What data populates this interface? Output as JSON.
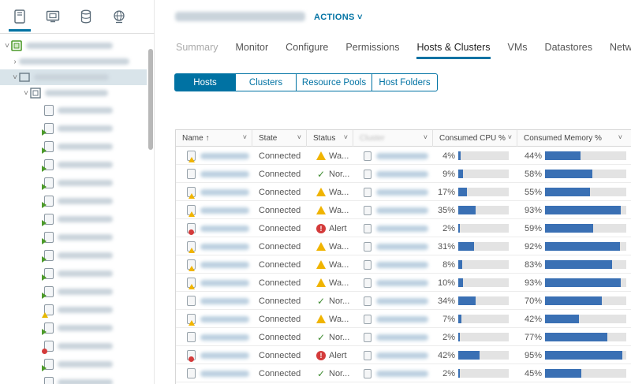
{
  "header": {
    "actions_label": "ACTIONS ˅"
  },
  "tabs": [
    {
      "label": "Summary"
    },
    {
      "label": "Monitor"
    },
    {
      "label": "Configure"
    },
    {
      "label": "Permissions"
    },
    {
      "label": "Hosts & Clusters"
    },
    {
      "label": "VMs"
    },
    {
      "label": "Datastores"
    },
    {
      "label": "Networks"
    }
  ],
  "subtabs": [
    {
      "label": "Hosts"
    },
    {
      "label": "Clusters"
    },
    {
      "label": "Resource Pools"
    },
    {
      "label": "Host Folders"
    }
  ],
  "table": {
    "columns": [
      "Name ↑",
      "State",
      "Status",
      "Cluster",
      "Consumed CPU %",
      "Consumed Memory %"
    ],
    "rows": [
      {
        "state": "Connected",
        "status": "Wa...",
        "status_type": "warning",
        "cpu": 4,
        "cpu_label": "4%",
        "mem": 44,
        "mem_label": "44%"
      },
      {
        "state": "Connected",
        "status": "Nor...",
        "status_type": "normal",
        "cpu": 9,
        "cpu_label": "9%",
        "mem": 58,
        "mem_label": "58%"
      },
      {
        "state": "Connected",
        "status": "Wa...",
        "status_type": "warning",
        "cpu": 17,
        "cpu_label": "17%",
        "mem": 55,
        "mem_label": "55%"
      },
      {
        "state": "Connected",
        "status": "Wa...",
        "status_type": "warning",
        "cpu": 35,
        "cpu_label": "35%",
        "mem": 93,
        "mem_label": "93%"
      },
      {
        "state": "Connected",
        "status": "Alert",
        "status_type": "alert",
        "cpu": 2,
        "cpu_label": "2%",
        "mem": 59,
        "mem_label": "59%"
      },
      {
        "state": "Connected",
        "status": "Wa...",
        "status_type": "warning",
        "cpu": 31,
        "cpu_label": "31%",
        "mem": 92,
        "mem_label": "92%"
      },
      {
        "state": "Connected",
        "status": "Wa...",
        "status_type": "warning",
        "cpu": 8,
        "cpu_label": "8%",
        "mem": 83,
        "mem_label": "83%"
      },
      {
        "state": "Connected",
        "status": "Wa...",
        "status_type": "warning",
        "cpu": 10,
        "cpu_label": "10%",
        "mem": 93,
        "mem_label": "93%"
      },
      {
        "state": "Connected",
        "status": "Nor...",
        "status_type": "normal",
        "cpu": 34,
        "cpu_label": "34%",
        "mem": 70,
        "mem_label": "70%"
      },
      {
        "state": "Connected",
        "status": "Wa...",
        "status_type": "warning",
        "cpu": 7,
        "cpu_label": "7%",
        "mem": 42,
        "mem_label": "42%"
      },
      {
        "state": "Connected",
        "status": "Nor...",
        "status_type": "normal",
        "cpu": 2,
        "cpu_label": "2%",
        "mem": 77,
        "mem_label": "77%"
      },
      {
        "state": "Connected",
        "status": "Alert",
        "status_type": "alert",
        "cpu": 42,
        "cpu_label": "42%",
        "mem": 95,
        "mem_label": "95%"
      },
      {
        "state": "Connected",
        "status": "Nor...",
        "status_type": "normal",
        "cpu": 2,
        "cpu_label": "2%",
        "mem": 45,
        "mem_label": "45%"
      }
    ]
  },
  "colors": {
    "accent": "#0072a3",
    "bar": "#3a70b4",
    "warning": "#f0b400",
    "alert": "#d43b3b",
    "normal": "#3c8a2e"
  },
  "icons": {
    "nav_hosts": "hosts-clusters-icon",
    "nav_vms": "vms-templates-icon",
    "nav_storage": "storage-icon",
    "nav_network": "network-icon"
  }
}
